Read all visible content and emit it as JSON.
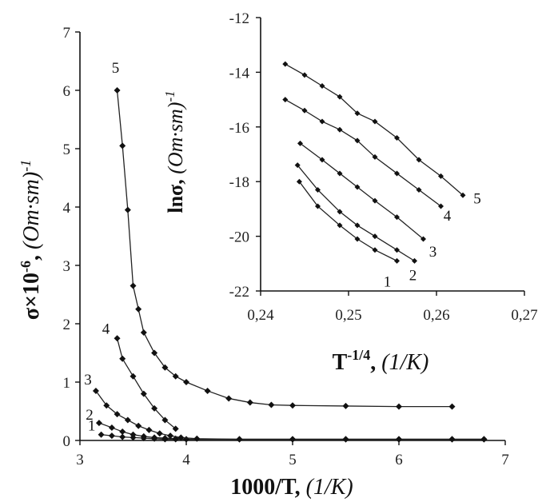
{
  "chart_data": [
    {
      "type": "line",
      "xlabel": {
        "bold": "1000/T, ",
        "italic": "(1/K)"
      },
      "ylabel": {
        "bold": "σ×10",
        "sup": "-6",
        "comma": ", ",
        "italic": "(Om·sm)",
        "sup2": "-1"
      },
      "xlim": [
        3,
        7
      ],
      "ylim": [
        0,
        7
      ],
      "xticks": [
        "3",
        "4",
        "5",
        "6",
        "7"
      ],
      "yticks": [
        "0",
        "1",
        "2",
        "3",
        "4",
        "5",
        "6",
        "7"
      ],
      "series": [
        {
          "name": "1",
          "x": [
            3.2,
            3.3,
            3.4,
            3.5,
            3.6,
            3.7,
            3.8,
            3.9,
            4.0,
            4.5,
            5.0,
            5.5,
            6.0,
            6.5,
            6.8
          ],
          "y": [
            0.1,
            0.08,
            0.06,
            0.05,
            0.04,
            0.03,
            0.02,
            0.02,
            0.02,
            0.02,
            0.02,
            0.02,
            0.02,
            0.02,
            0.02
          ]
        },
        {
          "name": "2",
          "x": [
            3.18,
            3.3,
            3.4,
            3.5,
            3.6,
            3.7,
            3.8,
            3.9,
            4.0,
            4.5,
            5.0,
            5.5,
            6.0,
            6.5,
            6.8
          ],
          "y": [
            0.3,
            0.22,
            0.15,
            0.1,
            0.07,
            0.05,
            0.04,
            0.03,
            0.02,
            0.02,
            0.02,
            0.02,
            0.02,
            0.02,
            0.02
          ]
        },
        {
          "name": "3",
          "x": [
            3.15,
            3.25,
            3.35,
            3.45,
            3.55,
            3.65,
            3.75,
            3.85,
            3.95,
            4.1,
            4.5,
            5.0,
            5.5,
            6.0,
            6.5,
            6.8
          ],
          "y": [
            0.85,
            0.6,
            0.45,
            0.35,
            0.25,
            0.18,
            0.12,
            0.08,
            0.05,
            0.03,
            0.02,
            0.02,
            0.02,
            0.02,
            0.02,
            0.02
          ]
        },
        {
          "name": "4",
          "x": [
            3.35,
            3.4,
            3.5,
            3.6,
            3.7,
            3.8,
            3.9
          ],
          "y": [
            1.75,
            1.4,
            1.1,
            0.8,
            0.55,
            0.35,
            0.2
          ]
        },
        {
          "name": "5",
          "x": [
            3.35,
            3.4,
            3.45,
            3.5,
            3.55,
            3.6,
            3.7,
            3.8,
            3.9,
            4.0,
            4.2,
            4.4,
            4.6,
            4.8,
            5.0,
            5.5,
            6.0,
            6.5
          ],
          "y": [
            6.0,
            5.05,
            3.95,
            2.65,
            2.25,
            1.85,
            1.5,
            1.25,
            1.1,
            1.0,
            0.85,
            0.72,
            0.65,
            0.61,
            0.6,
            0.59,
            0.58,
            0.58
          ]
        }
      ]
    },
    {
      "type": "line",
      "xlabel": {
        "bold": "T",
        "sup": "-1/4",
        "comma": ", ",
        "italic": "(1/K)"
      },
      "ylabel": {
        "bold": "lnσ",
        "comma": ", ",
        "italic": "(Om·sm)",
        "sup": "-1"
      },
      "xlim": [
        0.24,
        0.27
      ],
      "ylim": [
        -22,
        -12
      ],
      "xticks": [
        "0,24",
        "0,25",
        "0,26",
        "0,27"
      ],
      "yticks": [
        "-22",
        "-20",
        "-18",
        "-16",
        "-14",
        "-12"
      ],
      "series": [
        {
          "name": "1",
          "x": [
            0.2444,
            0.2465,
            0.249,
            0.251,
            0.253,
            0.2555
          ],
          "y": [
            -18.0,
            -18.9,
            -19.6,
            -20.1,
            -20.5,
            -20.9
          ]
        },
        {
          "name": "2",
          "x": [
            0.2442,
            0.2465,
            0.249,
            0.251,
            0.253,
            0.2555,
            0.2575
          ],
          "y": [
            -17.4,
            -18.3,
            -19.1,
            -19.6,
            -20.0,
            -20.5,
            -20.9
          ]
        },
        {
          "name": "3",
          "x": [
            0.2445,
            0.247,
            0.249,
            0.251,
            0.253,
            0.2555,
            0.2585
          ],
          "y": [
            -16.6,
            -17.2,
            -17.7,
            -18.2,
            -18.7,
            -19.3,
            -20.1
          ]
        },
        {
          "name": "4",
          "x": [
            0.2428,
            0.245,
            0.247,
            0.249,
            0.251,
            0.253,
            0.2555,
            0.258,
            0.2605
          ],
          "y": [
            -15.0,
            -15.4,
            -15.8,
            -16.1,
            -16.5,
            -17.1,
            -17.7,
            -18.3,
            -18.9
          ]
        },
        {
          "name": "5",
          "x": [
            0.2428,
            0.245,
            0.247,
            0.249,
            0.251,
            0.253,
            0.2555,
            0.258,
            0.2605,
            0.263
          ],
          "y": [
            -13.7,
            -14.1,
            -14.5,
            -14.9,
            -15.5,
            -15.8,
            -16.4,
            -17.2,
            -17.8,
            -18.5
          ]
        }
      ]
    }
  ]
}
